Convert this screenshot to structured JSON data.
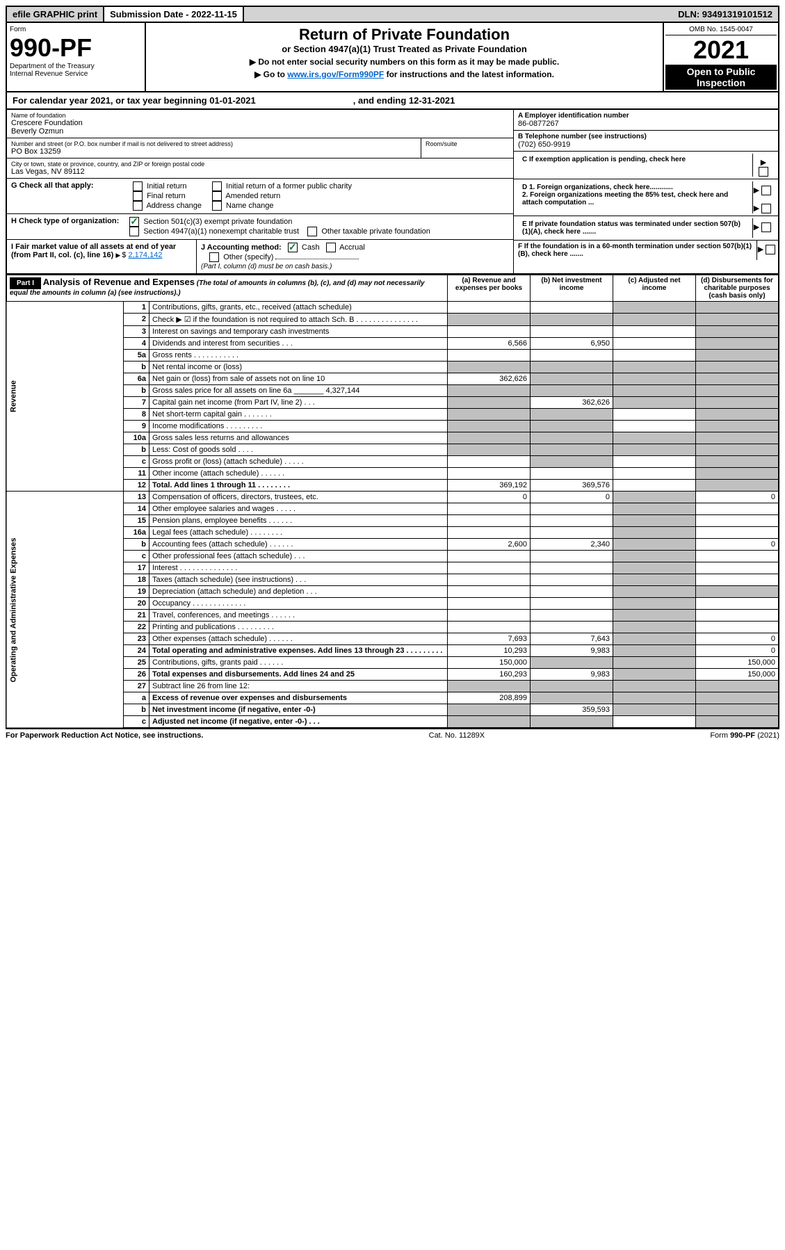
{
  "topbar": {
    "efile": "efile GRAPHIC print",
    "submission_label": "Submission Date - 2022-11-15",
    "dln": "DLN: 93491319101512"
  },
  "header": {
    "form_label": "Form",
    "form_number": "990-PF",
    "dept": "Department of the Treasury",
    "irs": "Internal Revenue Service",
    "title": "Return of Private Foundation",
    "subtitle": "or Section 4947(a)(1) Trust Treated as Private Foundation",
    "note1": "▶ Do not enter social security numbers on this form as it may be made public.",
    "note2_pre": "▶ Go to ",
    "note2_link": "www.irs.gov/Form990PF",
    "note2_post": " for instructions and the latest information.",
    "omb": "OMB No. 1545-0047",
    "year": "2021",
    "inspect": "Open to Public Inspection"
  },
  "calyear": {
    "text_l": "For calendar year 2021, or tax year beginning 01-01-2021",
    "text_r": ", and ending 12-31-2021"
  },
  "foundation": {
    "name_label": "Name of foundation",
    "name1": "Crescere Foundation",
    "name2": "Beverly Ozmun",
    "addr_label": "Number and street (or P.O. box number if mail is not delivered to street address)",
    "addr": "PO Box 13259",
    "room_label": "Room/suite",
    "city_label": "City or town, state or province, country, and ZIP or foreign postal code",
    "city": "Las Vegas, NV  89112"
  },
  "side": {
    "a_label": "A Employer identification number",
    "a_val": "86-0877267",
    "b_label": "B Telephone number (see instructions)",
    "b_val": "(702) 650-9919",
    "c_label": "C If exemption application is pending, check here",
    "d1": "D 1. Foreign organizations, check here............",
    "d2": "2. Foreign organizations meeting the 85% test, check here and attach computation ...",
    "e": "E  If private foundation status was terminated under section 507(b)(1)(A), check here .......",
    "f": "F  If the foundation is in a 60-month termination under section 507(b)(1)(B), check here ......."
  },
  "g": {
    "label": "G Check all that apply:",
    "opts": [
      "Initial return",
      "Final return",
      "Address change",
      "Initial return of a former public charity",
      "Amended return",
      "Name change"
    ]
  },
  "h": {
    "label": "H Check type of organization:",
    "o1": "Section 501(c)(3) exempt private foundation",
    "o2": "Section 4947(a)(1) nonexempt charitable trust",
    "o3": "Other taxable private foundation"
  },
  "i": {
    "label": "I Fair market value of all assets at end of year (from Part II, col. (c), line 16)",
    "arrow": "▶ $",
    "val": "2,174,142"
  },
  "j": {
    "label": "J Accounting method:",
    "cash": "Cash",
    "accrual": "Accrual",
    "other": "Other (specify)",
    "note": "(Part I, column (d) must be on cash basis.)"
  },
  "part1": {
    "label": "Part I",
    "title": "Analysis of Revenue and Expenses",
    "sub": "(The total of amounts in columns (b), (c), and (d) may not necessarily equal the amounts in column (a) (see instructions).)",
    "col_a": "(a)   Revenue and expenses per books",
    "col_b": "(b)   Net investment income",
    "col_c": "(c)   Adjusted net income",
    "col_d": "(d)   Disbursements for charitable purposes (cash basis only)"
  },
  "side_labels": {
    "rev": "Revenue",
    "oae": "Operating and Administrative Expenses"
  },
  "rows": [
    {
      "n": "1",
      "d": "Contributions, gifts, grants, etc., received (attach schedule)",
      "a": "",
      "b": "",
      "c": "g",
      "dd": "g"
    },
    {
      "n": "2",
      "d": "Check ▶ ☑ if the foundation is not required to attach Sch. B   .   .   .   .   .   .   .   .   .   .   .   .   .   .   .",
      "a": "g",
      "b": "g",
      "c": "g",
      "dd": "g"
    },
    {
      "n": "3",
      "d": "Interest on savings and temporary cash investments",
      "a": "",
      "b": "",
      "c": "",
      "dd": "g"
    },
    {
      "n": "4",
      "d": "Dividends and interest from securities   .   .   .",
      "a": "6,566",
      "b": "6,950",
      "c": "",
      "dd": "g"
    },
    {
      "n": "5a",
      "d": "Gross rents   .   .   .   .   .   .   .   .   .   .   .",
      "a": "",
      "b": "",
      "c": "",
      "dd": "g"
    },
    {
      "n": "b",
      "d": "Net rental income or (loss)  ",
      "a": "g",
      "b": "g",
      "c": "g",
      "dd": "g"
    },
    {
      "n": "6a",
      "d": "Net gain or (loss) from sale of assets not on line 10",
      "a": "362,626",
      "b": "g",
      "c": "g",
      "dd": "g"
    },
    {
      "n": "b",
      "d": "Gross sales price for all assets on line 6a _______ 4,327,144",
      "a": "g",
      "b": "g",
      "c": "g",
      "dd": "g"
    },
    {
      "n": "7",
      "d": "Capital gain net income (from Part IV, line 2)   .   .   .",
      "a": "g",
      "b": "362,626",
      "c": "g",
      "dd": "g"
    },
    {
      "n": "8",
      "d": "Net short-term capital gain   .   .   .   .   .   .   .",
      "a": "g",
      "b": "g",
      "c": "",
      "dd": "g"
    },
    {
      "n": "9",
      "d": "Income modifications   .   .   .   .   .   .   .   .   .",
      "a": "g",
      "b": "g",
      "c": "",
      "dd": "g"
    },
    {
      "n": "10a",
      "d": "Gross sales less returns and allowances",
      "a": "g",
      "b": "g",
      "c": "g",
      "dd": "g"
    },
    {
      "n": "b",
      "d": "Less: Cost of goods sold   .   .   .   .",
      "a": "g",
      "b": "g",
      "c": "g",
      "dd": "g"
    },
    {
      "n": "c",
      "d": "Gross profit or (loss) (attach schedule)   .   .   .   .   .",
      "a": "",
      "b": "g",
      "c": "",
      "dd": "g"
    },
    {
      "n": "11",
      "d": "Other income (attach schedule)   .   .   .   .   .   .",
      "a": "",
      "b": "",
      "c": "",
      "dd": "g"
    },
    {
      "n": "12",
      "d": "Total. Add lines 1 through 11   .   .   .   .   .   .   .   .",
      "a": "369,192",
      "b": "369,576",
      "c": "",
      "dd": "g",
      "bold": true
    },
    {
      "n": "13",
      "d": "Compensation of officers, directors, trustees, etc.",
      "a": "0",
      "b": "0",
      "c": "g",
      "dd": "0"
    },
    {
      "n": "14",
      "d": "Other employee salaries and wages   .   .   .   .   .",
      "a": "",
      "b": "",
      "c": "g",
      "dd": ""
    },
    {
      "n": "15",
      "d": "Pension plans, employee benefits   .   .   .   .   .   .",
      "a": "",
      "b": "",
      "c": "g",
      "dd": ""
    },
    {
      "n": "16a",
      "d": "Legal fees (attach schedule)   .   .   .   .   .   .   .   .",
      "a": "",
      "b": "",
      "c": "g",
      "dd": ""
    },
    {
      "n": "b",
      "d": "Accounting fees (attach schedule)   .   .   .   .   .   .",
      "a": "2,600",
      "b": "2,340",
      "c": "g",
      "dd": "0"
    },
    {
      "n": "c",
      "d": "Other professional fees (attach schedule)   .   .   .",
      "a": "",
      "b": "",
      "c": "g",
      "dd": ""
    },
    {
      "n": "17",
      "d": "Interest   .   .   .   .   .   .   .   .   .   .   .   .   .   .",
      "a": "",
      "b": "",
      "c": "g",
      "dd": ""
    },
    {
      "n": "18",
      "d": "Taxes (attach schedule) (see instructions)   .   .   .",
      "a": "",
      "b": "",
      "c": "g",
      "dd": ""
    },
    {
      "n": "19",
      "d": "Depreciation (attach schedule) and depletion   .   .   .",
      "a": "",
      "b": "",
      "c": "g",
      "dd": "g"
    },
    {
      "n": "20",
      "d": "Occupancy   .   .   .   .   .   .   .   .   .   .   .   .   .",
      "a": "",
      "b": "",
      "c": "g",
      "dd": ""
    },
    {
      "n": "21",
      "d": "Travel, conferences, and meetings   .   .   .   .   .   .",
      "a": "",
      "b": "",
      "c": "g",
      "dd": ""
    },
    {
      "n": "22",
      "d": "Printing and publications   .   .   .   .   .   .   .   .   .",
      "a": "",
      "b": "",
      "c": "g",
      "dd": ""
    },
    {
      "n": "23",
      "d": "Other expenses (attach schedule)   .   .   .   .   .   .",
      "a": "7,693",
      "b": "7,643",
      "c": "g",
      "dd": "0"
    },
    {
      "n": "24",
      "d": "Total operating and administrative expenses. Add lines 13 through 23   .   .   .   .   .   .   .   .   .",
      "a": "10,293",
      "b": "9,983",
      "c": "g",
      "dd": "0",
      "bold": true
    },
    {
      "n": "25",
      "d": "Contributions, gifts, grants paid   .   .   .   .   .   .",
      "a": "150,000",
      "b": "g",
      "c": "g",
      "dd": "150,000"
    },
    {
      "n": "26",
      "d": "Total expenses and disbursements. Add lines 24 and 25",
      "a": "160,293",
      "b": "9,983",
      "c": "g",
      "dd": "150,000",
      "bold": true
    },
    {
      "n": "27",
      "d": "Subtract line 26 from line 12:",
      "a": "g",
      "b": "g",
      "c": "g",
      "dd": "g"
    },
    {
      "n": "a",
      "d": "Excess of revenue over expenses and disbursements",
      "a": "208,899",
      "b": "g",
      "c": "g",
      "dd": "g",
      "bold": true
    },
    {
      "n": "b",
      "d": "Net investment income (if negative, enter -0-)",
      "a": "g",
      "b": "359,593",
      "c": "g",
      "dd": "g",
      "bold": true
    },
    {
      "n": "c",
      "d": "Adjusted net income (if negative, enter -0-)   .   .   .",
      "a": "g",
      "b": "g",
      "c": "",
      "dd": "g",
      "bold": true
    }
  ],
  "footer": {
    "left": "For Paperwork Reduction Act Notice, see instructions.",
    "mid": "Cat. No. 11289X",
    "right": "Form 990-PF (2021)"
  }
}
